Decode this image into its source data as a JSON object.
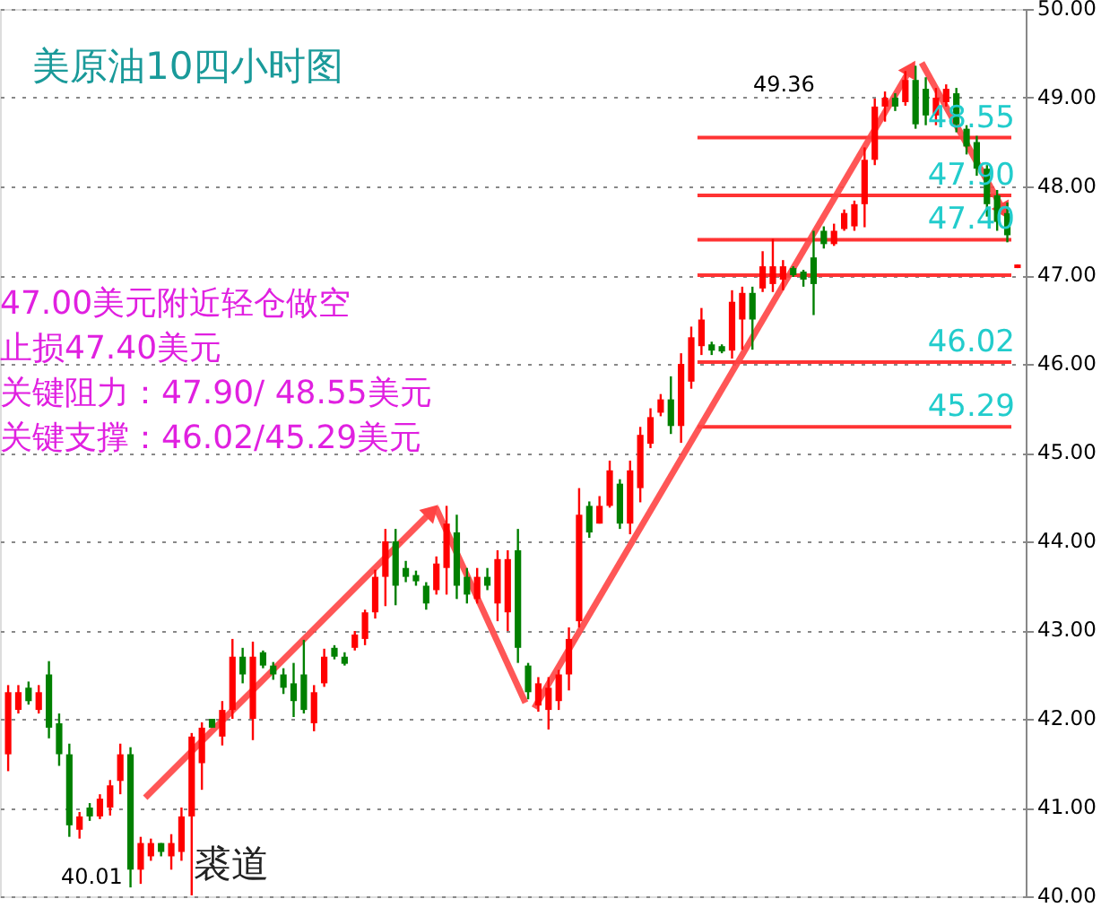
{
  "chart_data": {
    "type": "candlestick",
    "title": "美原油10四小时图",
    "categories": [
      null,
      null,
      null,
      null,
      null,
      null,
      null,
      null,
      null,
      null,
      null,
      null,
      null,
      null,
      null,
      null,
      null,
      null,
      null,
      null,
      null,
      null,
      null,
      null,
      null,
      null,
      null,
      null,
      null,
      null,
      null,
      null,
      null,
      null,
      null,
      null,
      null,
      null,
      null,
      null,
      null,
      null,
      null,
      null,
      null,
      null,
      null,
      null,
      null,
      null,
      null,
      null,
      null,
      null,
      null,
      null,
      null,
      null,
      null,
      null,
      null,
      null,
      null,
      null,
      null,
      null,
      null,
      null,
      null,
      null,
      null,
      null,
      null,
      null,
      null,
      null,
      null,
      null,
      null,
      null,
      null,
      null,
      null,
      null,
      null,
      null,
      null,
      null,
      null,
      null,
      null,
      null,
      null,
      null,
      null,
      null,
      null,
      null,
      null,
      null
    ],
    "ohlc": [
      [
        41.6,
        42.38,
        41.41,
        42.3
      ],
      [
        42.1,
        42.38,
        42.06,
        42.3
      ],
      [
        42.35,
        42.42,
        42.16,
        42.2
      ],
      [
        42.1,
        42.38,
        42.06,
        42.3
      ],
      [
        42.5,
        42.65,
        41.78,
        41.9
      ],
      [
        41.95,
        42.06,
        41.47,
        41.6
      ],
      [
        41.6,
        41.72,
        40.67,
        40.8
      ],
      [
        40.75,
        40.95,
        40.65,
        40.9
      ],
      [
        41.0,
        41.05,
        40.85,
        40.9
      ],
      [
        40.9,
        41.15,
        40.87,
        41.1
      ],
      [
        41.0,
        41.31,
        40.91,
        41.25
      ],
      [
        41.3,
        41.72,
        41.15,
        41.6
      ],
      [
        41.6,
        41.68,
        40.1,
        40.3
      ],
      [
        40.3,
        40.67,
        40.14,
        40.6
      ],
      [
        40.45,
        40.65,
        40.4,
        40.6
      ],
      [
        40.6,
        40.6,
        40.45,
        40.5
      ],
      [
        40.45,
        40.7,
        40.3,
        40.6
      ],
      [
        40.5,
        41.0,
        40.4,
        40.9
      ],
      [
        40.9,
        41.84,
        40.01,
        41.8
      ],
      [
        41.5,
        41.96,
        41.2,
        41.9
      ],
      [
        42.0,
        42.0,
        41.9,
        41.9
      ],
      [
        41.8,
        42.2,
        41.7,
        42.1
      ],
      [
        42.1,
        42.9,
        42.0,
        42.7
      ],
      [
        42.7,
        42.8,
        42.4,
        42.5
      ],
      [
        42.0,
        42.87,
        41.76,
        42.7
      ],
      [
        42.75,
        42.77,
        42.57,
        42.6
      ],
      [
        42.6,
        42.64,
        42.44,
        42.5
      ],
      [
        42.5,
        42.57,
        42.28,
        42.35
      ],
      [
        42.4,
        42.63,
        42.02,
        42.2
      ],
      [
        42.5,
        42.89,
        42.06,
        42.1
      ],
      [
        41.95,
        42.38,
        41.86,
        42.3
      ],
      [
        42.4,
        42.79,
        42.36,
        42.7
      ],
      [
        42.8,
        42.83,
        42.67,
        42.7
      ],
      [
        42.7,
        42.75,
        42.6,
        42.62
      ],
      [
        42.8,
        42.99,
        42.77,
        42.95
      ],
      [
        42.9,
        43.23,
        42.83,
        43.2
      ],
      [
        43.2,
        43.68,
        43.13,
        43.6
      ],
      [
        43.6,
        44.14,
        43.27,
        44.0
      ],
      [
        44.0,
        44.14,
        43.28,
        43.5
      ],
      [
        43.7,
        43.78,
        43.54,
        43.6
      ],
      [
        43.62,
        43.67,
        43.5,
        43.55
      ],
      [
        43.5,
        43.54,
        43.23,
        43.3
      ],
      [
        43.45,
        43.83,
        43.4,
        43.75
      ],
      [
        43.7,
        44.4,
        43.4,
        44.2
      ],
      [
        44.1,
        44.3,
        43.35,
        43.5
      ],
      [
        43.6,
        43.7,
        43.3,
        43.4
      ],
      [
        43.35,
        43.7,
        43.3,
        43.6
      ],
      [
        43.6,
        43.7,
        43.45,
        43.5
      ],
      [
        43.3,
        43.9,
        43.1,
        43.8
      ],
      [
        43.2,
        43.9,
        42.99,
        43.8
      ],
      [
        43.9,
        44.14,
        42.63,
        42.8
      ],
      [
        42.6,
        42.63,
        42.22,
        42.3
      ],
      [
        42.15,
        42.47,
        42.08,
        42.4
      ],
      [
        42.1,
        42.47,
        41.88,
        42.35
      ],
      [
        42.2,
        42.55,
        42.1,
        42.5
      ],
      [
        42.5,
        43.03,
        42.32,
        42.9
      ],
      [
        43.1,
        44.6,
        43.03,
        44.3
      ],
      [
        44.4,
        44.45,
        44.04,
        44.1
      ],
      [
        44.2,
        44.51,
        44.2,
        44.4
      ],
      [
        44.4,
        44.91,
        44.38,
        44.8
      ],
      [
        44.65,
        44.7,
        44.14,
        44.2
      ],
      [
        44.2,
        44.91,
        44.08,
        44.8
      ],
      [
        44.6,
        45.29,
        44.44,
        45.2
      ],
      [
        45.1,
        45.5,
        45.05,
        45.4
      ],
      [
        45.45,
        45.66,
        45.41,
        45.6
      ],
      [
        45.6,
        45.86,
        45.21,
        45.3
      ],
      [
        45.3,
        46.12,
        45.11,
        46.0
      ],
      [
        45.8,
        46.42,
        45.72,
        46.3
      ],
      [
        46.2,
        46.63,
        46.1,
        46.5
      ],
      [
        46.22,
        46.25,
        46.1,
        46.15
      ],
      [
        46.2,
        46.22,
        46.12,
        46.14
      ],
      [
        46.15,
        46.83,
        46.06,
        46.7
      ],
      [
        46.5,
        46.87,
        46.16,
        46.8
      ],
      [
        46.8,
        46.87,
        46.16,
        46.5
      ],
      [
        46.85,
        47.27,
        46.81,
        47.1
      ],
      [
        46.9,
        47.41,
        46.81,
        47.1
      ],
      [
        46.95,
        47.17,
        46.83,
        47.1
      ],
      [
        47.08,
        47.1,
        46.98,
        47.0
      ],
      [
        47.04,
        47.06,
        46.87,
        46.95
      ],
      [
        47.2,
        47.5,
        46.55,
        46.9
      ],
      [
        47.5,
        47.55,
        47.3,
        47.35
      ],
      [
        47.35,
        47.58,
        47.33,
        47.5
      ],
      [
        47.52,
        47.74,
        47.5,
        47.7
      ],
      [
        47.55,
        47.84,
        47.5,
        47.8
      ],
      [
        47.8,
        48.44,
        47.54,
        48.3
      ],
      [
        48.3,
        48.99,
        48.24,
        48.9
      ],
      [
        48.9,
        49.07,
        48.73,
        49.0
      ],
      [
        49.0,
        49.05,
        48.85,
        48.9
      ],
      [
        48.95,
        49.3,
        48.91,
        49.2
      ],
      [
        49.2,
        49.36,
        48.65,
        48.7
      ],
      [
        49.1,
        49.23,
        48.69,
        48.8
      ],
      [
        48.8,
        49.11,
        48.69,
        49.0
      ],
      [
        48.95,
        49.15,
        48.9,
        49.1
      ],
      [
        49.05,
        49.11,
        48.61,
        48.7
      ],
      [
        48.65,
        48.69,
        48.36,
        48.45
      ],
      [
        48.5,
        48.57,
        48.12,
        48.2
      ],
      [
        48.2,
        48.24,
        47.66,
        47.8
      ],
      [
        47.9,
        47.96,
        47.5,
        47.6
      ],
      [
        47.7,
        47.82,
        47.37,
        47.45
      ],
      [
        47.08,
        47.12,
        47.08,
        47.12
      ]
    ],
    "colors": [
      "#ff0000",
      "#ff0000",
      "#008000",
      "#ff0000",
      "#008000",
      "#008000",
      "#008000",
      "#ff0000",
      "#008000",
      "#ff0000",
      "#ff0000",
      "#ff0000",
      "#008000",
      "#ff0000",
      "#ff0000",
      "#008000",
      "#ff0000",
      "#ff0000",
      "#ff0000",
      "#ff0000",
      "#008000",
      "#ff0000",
      "#ff0000",
      "#008000",
      "#ff0000",
      "#008000",
      "#008000",
      "#008000",
      "#008000",
      "#008000",
      "#ff0000",
      "#ff0000",
      "#008000",
      "#008000",
      "#ff0000",
      "#ff0000",
      "#ff0000",
      "#ff0000",
      "#008000",
      "#008000",
      "#008000",
      "#008000",
      "#ff0000",
      "#ff0000",
      "#008000",
      "#008000",
      "#ff0000",
      "#008000",
      "#ff0000",
      "#ff0000",
      "#008000",
      "#008000",
      "#ff0000",
      "#ff0000",
      "#ff0000",
      "#ff0000",
      "#ff0000",
      "#008000",
      "#ff0000",
      "#ff0000",
      "#008000",
      "#ff0000",
      "#ff0000",
      "#ff0000",
      "#ff0000",
      "#008000",
      "#ff0000",
      "#ff0000",
      "#ff0000",
      "#008000",
      "#008000",
      "#ff0000",
      "#ff0000",
      "#008000",
      "#ff0000",
      "#ff0000",
      "#ff0000",
      "#008000",
      "#008000",
      "#008000",
      "#008000",
      "#ff0000",
      "#ff0000",
      "#ff0000",
      "#ff0000",
      "#ff0000",
      "#ff0000",
      "#008000",
      "#ff0000",
      "#008000",
      "#008000",
      "#ff0000",
      "#ff0000",
      "#008000",
      "#008000",
      "#008000",
      "#008000",
      "#008000",
      "#008000",
      "#ff0000"
    ],
    "ylim": [
      40,
      50
    ],
    "yticks": [
      {
        "value": 40,
        "label": "40.00"
      },
      {
        "value": 41,
        "label": "41.00"
      },
      {
        "value": 42,
        "label": "42.00"
      },
      {
        "value": 43,
        "label": "43.00"
      },
      {
        "value": 44,
        "label": "44.00"
      },
      {
        "value": 45,
        "label": "45.00"
      },
      {
        "value": 46,
        "label": "46.00"
      },
      {
        "value": 47,
        "label": "47.00"
      },
      {
        "value": 48,
        "label": "48.00"
      },
      {
        "value": 49,
        "label": "49.00"
      },
      {
        "value": 50,
        "label": "50.00"
      }
    ],
    "grid": "y",
    "tick_labels": "y",
    "ref_lines": [
      {
        "axis": "y",
        "value": 48.55,
        "label": "48.55",
        "color": "#ff3333"
      },
      {
        "axis": "y",
        "value": 47.9,
        "label": "47.90",
        "color": "#ff3333"
      },
      {
        "axis": "y",
        "value": 47.4,
        "label": "47.40",
        "color": "#ff3333"
      },
      {
        "axis": "y",
        "value": 47.0,
        "color": "#ff3333"
      },
      {
        "axis": "y",
        "value": 46.02,
        "label": "46.02",
        "color": "#ff3333"
      },
      {
        "axis": "y",
        "value": 45.29,
        "label": "45.29",
        "color": "#ff3333"
      }
    ],
    "annotations": [
      "47.00美元附近轻仓做空",
      "止损47.40美元",
      "关键阻力：47.90/ 48.55美元",
      "关键支撑：46.02/45.29美元",
      "裘道",
      "49.36",
      "40.01"
    ]
  }
}
